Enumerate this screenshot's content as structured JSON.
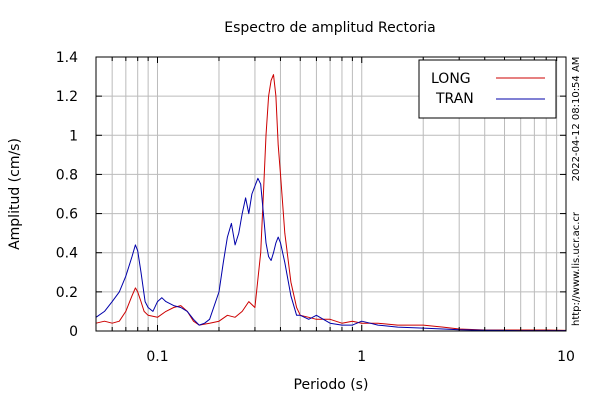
{
  "chart_data": {
    "type": "line",
    "title": "Espectro de amplitud Rectoria",
    "xlabel": "Periodo (s)",
    "ylabel": "Amplitud (cm/s)",
    "xscale": "log",
    "xlim": [
      0.05,
      10
    ],
    "ylim": [
      0,
      1.4
    ],
    "x_ticks": [
      0.1,
      1,
      10
    ],
    "x_tick_labels": [
      "0.1",
      "1",
      "10"
    ],
    "y_ticks": [
      0,
      0.2,
      0.4,
      0.6,
      0.8,
      1,
      1.2,
      1.4
    ],
    "y_tick_labels": [
      "0",
      "0.2",
      "0.4",
      "0.6",
      "0.8",
      "1",
      "1.2",
      "1.4"
    ],
    "grid": true,
    "legend": "top-right",
    "side_text": [
      "2022-04-12 08:10:54 AM",
      "http://www.lis.ucr.ac.cr"
    ],
    "series": [
      {
        "name": "LONG",
        "color": "#cc0000",
        "x": [
          0.05,
          0.055,
          0.06,
          0.065,
          0.07,
          0.075,
          0.078,
          0.08,
          0.083,
          0.086,
          0.09,
          0.1,
          0.11,
          0.12,
          0.13,
          0.14,
          0.15,
          0.16,
          0.18,
          0.2,
          0.22,
          0.24,
          0.26,
          0.28,
          0.3,
          0.32,
          0.33,
          0.34,
          0.35,
          0.36,
          0.37,
          0.38,
          0.39,
          0.4,
          0.42,
          0.45,
          0.48,
          0.5,
          0.55,
          0.6,
          0.7,
          0.8,
          0.9,
          1.0,
          1.1,
          1.2,
          1.5,
          2,
          2.5,
          3,
          4,
          5,
          6,
          7,
          8,
          10
        ],
        "y": [
          0.04,
          0.05,
          0.04,
          0.05,
          0.1,
          0.18,
          0.22,
          0.2,
          0.15,
          0.1,
          0.08,
          0.07,
          0.1,
          0.12,
          0.13,
          0.1,
          0.05,
          0.03,
          0.04,
          0.05,
          0.08,
          0.07,
          0.1,
          0.15,
          0.12,
          0.4,
          0.7,
          1.0,
          1.2,
          1.28,
          1.31,
          1.2,
          0.95,
          0.8,
          0.5,
          0.25,
          0.12,
          0.08,
          0.07,
          0.06,
          0.06,
          0.04,
          0.05,
          0.04,
          0.04,
          0.04,
          0.03,
          0.03,
          0.02,
          0.01,
          0.005,
          0.005,
          0.005,
          0.005,
          0.005,
          0.003
        ]
      },
      {
        "name": "TRAN",
        "color": "#0000aa",
        "x": [
          0.05,
          0.055,
          0.06,
          0.065,
          0.07,
          0.075,
          0.078,
          0.08,
          0.083,
          0.087,
          0.09,
          0.095,
          0.1,
          0.105,
          0.11,
          0.12,
          0.13,
          0.14,
          0.15,
          0.16,
          0.17,
          0.18,
          0.2,
          0.21,
          0.22,
          0.23,
          0.24,
          0.25,
          0.26,
          0.27,
          0.28,
          0.29,
          0.3,
          0.31,
          0.32,
          0.33,
          0.34,
          0.35,
          0.36,
          0.37,
          0.38,
          0.39,
          0.4,
          0.42,
          0.45,
          0.48,
          0.5,
          0.55,
          0.6,
          0.7,
          0.8,
          0.9,
          1.0,
          1.1,
          1.2,
          1.5,
          2,
          2.5,
          3,
          4,
          5,
          6,
          8,
          10
        ],
        "y": [
          0.07,
          0.1,
          0.15,
          0.2,
          0.28,
          0.38,
          0.44,
          0.41,
          0.3,
          0.15,
          0.12,
          0.1,
          0.15,
          0.17,
          0.15,
          0.13,
          0.12,
          0.1,
          0.06,
          0.03,
          0.04,
          0.06,
          0.2,
          0.35,
          0.48,
          0.55,
          0.44,
          0.5,
          0.6,
          0.68,
          0.6,
          0.7,
          0.74,
          0.78,
          0.75,
          0.6,
          0.45,
          0.38,
          0.36,
          0.4,
          0.45,
          0.48,
          0.45,
          0.35,
          0.18,
          0.08,
          0.08,
          0.06,
          0.08,
          0.04,
          0.03,
          0.03,
          0.05,
          0.04,
          0.03,
          0.02,
          0.015,
          0.01,
          0.006,
          0.004,
          0.003,
          0.002,
          0.002,
          0.002
        ]
      }
    ]
  }
}
